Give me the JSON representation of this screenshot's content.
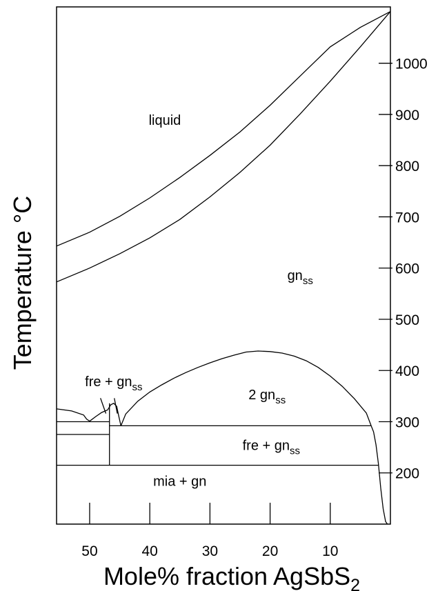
{
  "chart_data": {
    "type": "line",
    "title": "",
    "xlabel": "Mole% fraction AgSbS",
    "xlabel_subscript": "2",
    "ylabel": "Temperature °C",
    "xlim": [
      55.5,
      0
    ],
    "ylim": [
      100,
      1110
    ],
    "x_ticks": [
      50,
      40,
      30,
      20,
      10
    ],
    "x_tick_labels": [
      "50",
      "40",
      "30",
      "20",
      "10"
    ],
    "y_ticks": [
      200,
      300,
      400,
      500,
      600,
      700,
      800,
      900,
      1000
    ],
    "y_tick_labels": [
      "200",
      "300",
      "400",
      "500",
      "600",
      "700",
      "800",
      "900",
      "1000"
    ],
    "y_axis_side": "right",
    "grid": false,
    "series": [
      {
        "id": "liquidus",
        "x": [
          55.5,
          50,
          45,
          40,
          35,
          30,
          25,
          20,
          15,
          10,
          5,
          0
        ],
        "y": [
          643,
          670,
          701,
          737,
          777,
          820,
          866,
          918,
          975,
          1032,
          1070,
          1101
        ]
      },
      {
        "id": "solidus",
        "x": [
          55.5,
          50,
          45,
          40,
          35,
          30,
          25,
          20,
          15,
          10,
          5,
          0
        ],
        "y": [
          573,
          600,
          628,
          659,
          695,
          739,
          787,
          840,
          901,
          965,
          1032,
          1101
        ]
      },
      {
        "id": "gn-solvus",
        "x": [
          44.8,
          44,
          42,
          40,
          38,
          36,
          34,
          32,
          30,
          28,
          26,
          24,
          22,
          20,
          18,
          16,
          14,
          12,
          10,
          8,
          6,
          4,
          3.2
        ],
        "y": [
          292,
          315,
          340,
          358,
          372,
          385,
          396,
          406,
          415,
          423,
          430,
          436,
          438,
          437,
          434,
          428,
          419,
          406,
          389,
          369,
          345,
          317,
          292
        ]
      },
      {
        "id": "solvus-left",
        "x": [
          55.5,
          53,
          51,
          50.5,
          50
        ],
        "y": [
          325,
          321,
          313,
          305,
          301
        ]
      },
      {
        "id": "fre-gn-solvus-left",
        "x": [
          50,
          49,
          48,
          47
        ],
        "y": [
          301,
          310,
          318,
          323
        ]
      },
      {
        "id": "gn-miscibility-cap",
        "x": [
          47,
          46.5,
          46,
          45.5,
          45.2,
          44.8
        ],
        "y": [
          323,
          333,
          336,
          330,
          313,
          292
        ]
      },
      {
        "id": "miargyrite-solvus",
        "x": [
          3.2,
          2.8,
          2.4,
          2,
          1.6,
          1.2,
          0.8,
          0.5
        ],
        "y": [
          292,
          280,
          255,
          218,
          170,
          130,
          105,
          100
        ]
      },
      {
        "id": "isotherm-300",
        "x": [
          55.5,
          46.7
        ],
        "y": [
          300,
          300
        ]
      },
      {
        "id": "isotherm-292",
        "x": [
          46.7,
          3.2
        ],
        "y": [
          292,
          292
        ]
      },
      {
        "id": "isotherm-275",
        "x": [
          55.5,
          46.7
        ],
        "y": [
          275,
          275
        ]
      },
      {
        "id": "isotherm-215",
        "x": [
          55.5,
          2
        ],
        "y": [
          215,
          215
        ]
      },
      {
        "id": "vertical-46.7",
        "x": [
          46.7,
          46.7
        ],
        "y": [
          215,
          336
        ]
      }
    ],
    "annotations": [
      {
        "id": "liquid",
        "text": "liquid",
        "x": 37.5,
        "y": 880
      },
      {
        "id": "gnss",
        "text": "gn",
        "subscript": "ss",
        "x": 15,
        "y": 577
      },
      {
        "id": "fre-gnss-upper",
        "text": "fre + gn",
        "subscript": "ss",
        "x": 46,
        "y": 369
      },
      {
        "id": "2-gnss",
        "text": "2 gn",
        "subscript": "ss",
        "x": 20.5,
        "y": 344
      },
      {
        "id": "fre-gnss-lower",
        "text": "fre + gn",
        "subscript": "ss",
        "x": 19.8,
        "y": 245
      },
      {
        "id": "mia-gn",
        "text": "mia + gn",
        "x": 35,
        "y": 175
      }
    ],
    "pointer_lines": [
      {
        "from": [
          48.2,
          346
        ],
        "to": [
          47.3,
          316
        ]
      },
      {
        "from": [
          45.9,
          346
        ],
        "to": [
          45.4,
          316
        ]
      }
    ]
  }
}
